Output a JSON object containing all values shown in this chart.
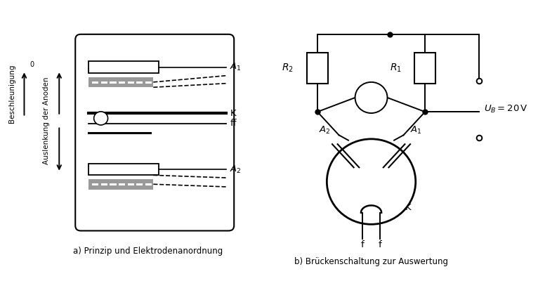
{
  "label_a": "a) Prinzip und Elektrodenanordnung",
  "label_b": "b) Brückenschaltung zur Auswertung",
  "ub_label": "$U_B = 20\\,\\mathrm{V}$",
  "bg_color": "#ffffff",
  "line_color": "#000000",
  "gray_color": "#999999",
  "fig_width": 7.66,
  "fig_height": 4.0,
  "dpi": 100
}
